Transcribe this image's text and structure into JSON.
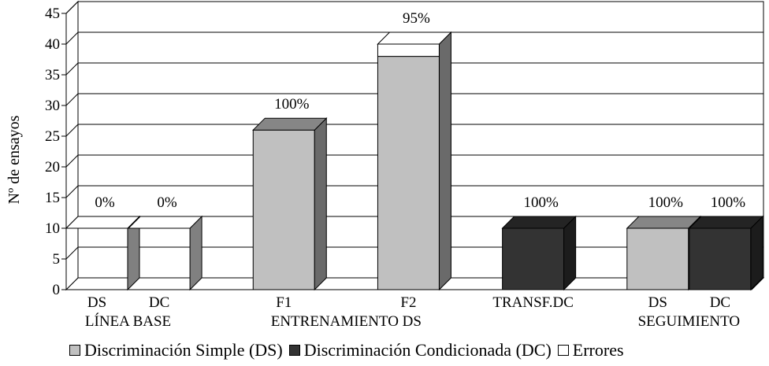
{
  "chart_data": {
    "type": "bar",
    "ylabel": "Nº de ensayos",
    "ylim": [
      0,
      45
    ],
    "yticks": [
      0,
      5,
      10,
      15,
      20,
      25,
      30,
      35,
      40,
      45
    ],
    "grid": true,
    "legend_position": "bottom",
    "groups": [
      {
        "label": "LÍNEA BASE",
        "categories": [
          "DS",
          "DC"
        ]
      },
      {
        "label": "ENTRENAMIENTO DS",
        "categories": [
          "F1",
          "F2"
        ]
      },
      {
        "label": "",
        "categories": [
          "TRANSF.DC"
        ]
      },
      {
        "label": "SEGUIMIENTO",
        "categories": [
          "DS",
          "DC"
        ]
      }
    ],
    "bars": [
      {
        "category": "DS",
        "series": "Errores",
        "value": 10,
        "errors": 10,
        "label": "0%"
      },
      {
        "category": "DC",
        "series": "Errores",
        "value": 10,
        "errors": 10,
        "label": "0%"
      },
      {
        "category": "F1",
        "series": "Discriminación Simple (DS)",
        "value": 26,
        "errors": 0,
        "label": "100%"
      },
      {
        "category": "F2",
        "series": "Discriminación Simple (DS)",
        "value": 40,
        "errors": 2,
        "label": "95%"
      },
      {
        "category": "TRANSF.DC",
        "series": "Discriminación Condicionada (DC)",
        "value": 10,
        "errors": 0,
        "label": "100%"
      },
      {
        "category": "DS",
        "series": "Discriminación Simple (DS)",
        "value": 10,
        "errors": 0,
        "label": "100%"
      },
      {
        "category": "DC",
        "series": "Discriminación Condicionada (DC)",
        "value": 10,
        "errors": 0,
        "label": "100%"
      }
    ],
    "legend": [
      {
        "name": "Discriminación Simple (DS)",
        "color": "#c0c0c0"
      },
      {
        "name": "Discriminación Condicionada (DC)",
        "color": "#333333"
      },
      {
        "name": "Errores",
        "color": "#ffffff"
      }
    ]
  }
}
